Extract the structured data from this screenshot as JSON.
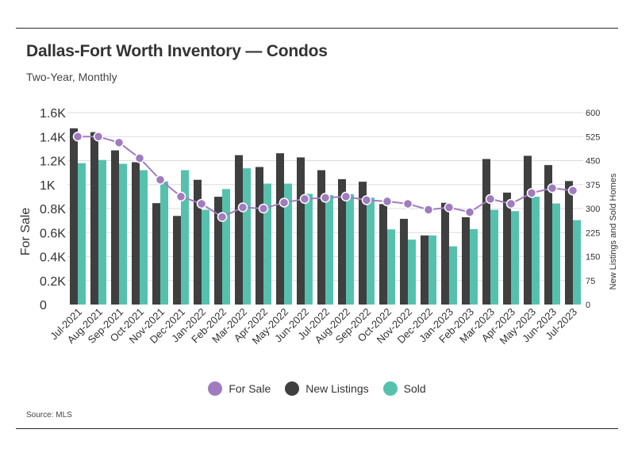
{
  "header": {
    "title": "Dallas-Fort Worth Inventory — Condos",
    "subtitle": "Two-Year, Monthly"
  },
  "footer": {
    "source": "Source:  MLS"
  },
  "colors": {
    "for_sale": "#a07bbf",
    "new_listings": "#3f3f3f",
    "sold": "#55c1ad",
    "grid": "#dddddd"
  },
  "chart_data": {
    "type": "bar",
    "categories": [
      "Jul-2021",
      "Aug-2021",
      "Sep-2021",
      "Oct-2021",
      "Nov-2021",
      "Dec-2021",
      "Jan-2022",
      "Feb-2022",
      "Mar-2022",
      "Apr-2022",
      "May-2022",
      "Jun-2022",
      "Jul-2022",
      "Aug-2022",
      "Sep-2022",
      "Oct-2022",
      "Nov-2022",
      "Dec-2022",
      "Jan-2023",
      "Feb-2023",
      "Mar-2023",
      "Apr-2023",
      "May-2023",
      "Jun-2023",
      "Jul-2023"
    ],
    "y_left": {
      "label": "For Sale",
      "ticks": [
        "0",
        "0.2K",
        "0.4K",
        "0.6K",
        "0.8K",
        "1K",
        "1.2K",
        "1.4K",
        "1.6K"
      ],
      "range": [
        0,
        1600
      ]
    },
    "y_right": {
      "label": "New Listings and Sold Homes",
      "ticks": [
        "0",
        "75",
        "150",
        "225",
        "300",
        "375",
        "450",
        "525",
        "600"
      ],
      "range": [
        0,
        600
      ]
    },
    "series": [
      {
        "name": "New Listings",
        "type": "bar",
        "axis": "right",
        "values": [
          551,
          539,
          482,
          445,
          317,
          277,
          390,
          337,
          467,
          430,
          473,
          460,
          420,
          392,
          384,
          314,
          268,
          216,
          318,
          273,
          455,
          350,
          465,
          436,
          386
        ]
      },
      {
        "name": "Sold",
        "type": "bar",
        "axis": "right",
        "values": [
          442,
          452,
          440,
          420,
          385,
          420,
          296,
          361,
          426,
          378,
          378,
          346,
          342,
          345,
          334,
          235,
          203,
          216,
          182,
          236,
          296,
          292,
          337,
          316,
          264
        ]
      },
      {
        "name": "For Sale",
        "type": "line",
        "axis": "left",
        "values": [
          1400,
          1400,
          1350,
          1220,
          1040,
          900,
          840,
          730,
          810,
          800,
          850,
          880,
          890,
          900,
          870,
          860,
          840,
          790,
          810,
          770,
          880,
          840,
          930,
          970,
          950
        ]
      }
    ],
    "grid": true,
    "legend": [
      "For Sale",
      "New Listings",
      "Sold"
    ],
    "legend_position": "bottom"
  }
}
